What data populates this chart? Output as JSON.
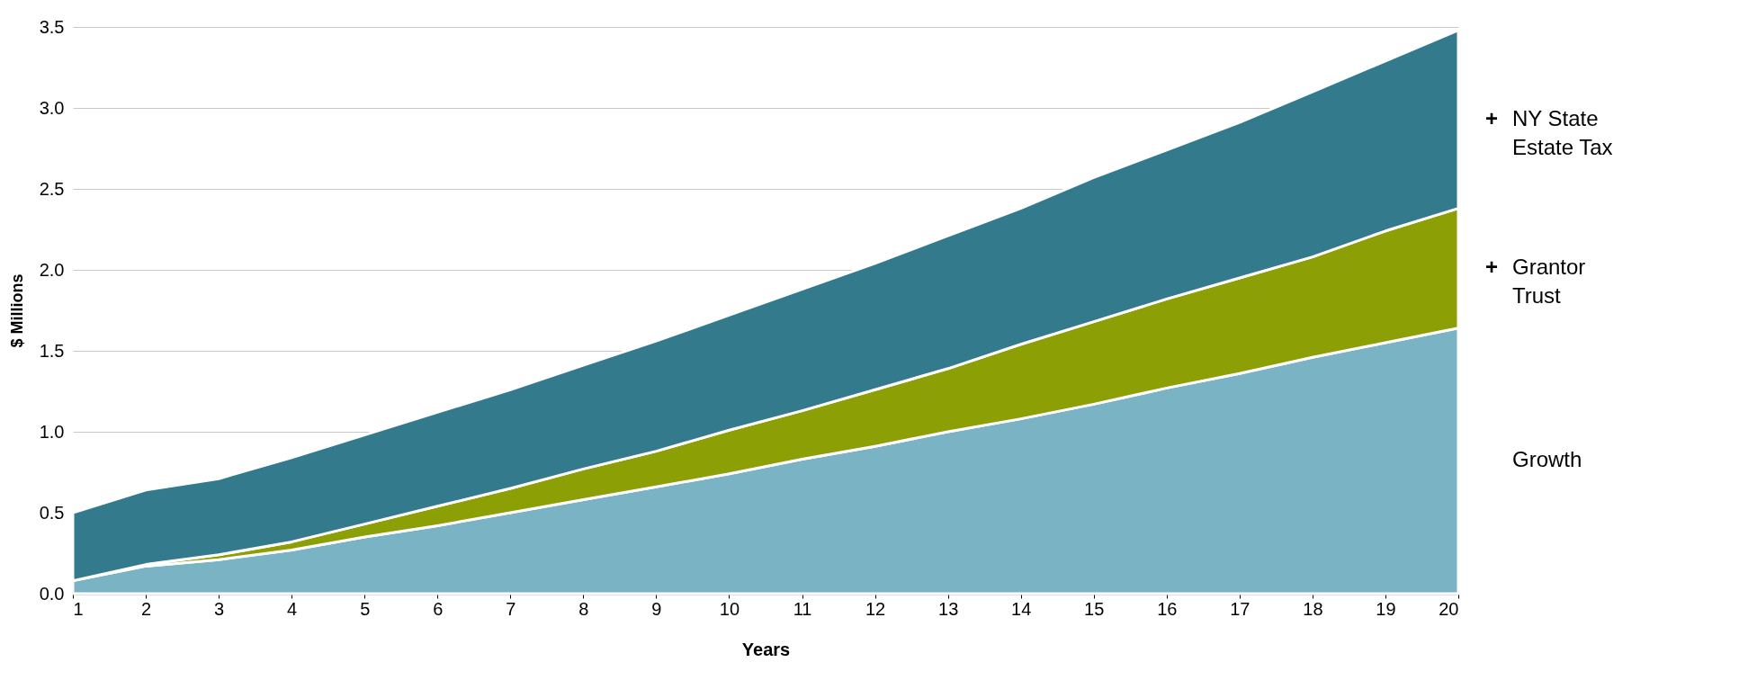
{
  "chart_data": {
    "type": "area",
    "stacked": true,
    "xlabel": "Years",
    "ylabel": "$ Millions",
    "x": [
      1,
      2,
      3,
      4,
      5,
      6,
      7,
      8,
      9,
      10,
      11,
      12,
      13,
      14,
      15,
      16,
      17,
      18,
      19,
      20
    ],
    "xlim": [
      1,
      20
    ],
    "xticks": [
      1,
      2,
      3,
      4,
      5,
      6,
      7,
      8,
      9,
      10,
      11,
      12,
      13,
      14,
      15,
      16,
      17,
      18,
      19,
      20
    ],
    "ylim": [
      0,
      3.5
    ],
    "yticks": [
      {
        "value": 0,
        "label": "0.0"
      },
      {
        "value": 0.5,
        "label": "0.5"
      },
      {
        "value": 1,
        "label": "1.0"
      },
      {
        "value": 1.5,
        "label": "1.5"
      },
      {
        "value": 2,
        "label": "2.0"
      },
      {
        "value": 2.5,
        "label": "2.5"
      },
      {
        "value": 3,
        "label": "3.0"
      },
      {
        "value": 3.5,
        "label": "3.5"
      }
    ],
    "grid": "y",
    "legend": "right",
    "series": [
      {
        "name": "Growth",
        "color": "#7ab3c3",
        "values": [
          0.08,
          0.17,
          0.21,
          0.27,
          0.35,
          0.42,
          0.5,
          0.58,
          0.66,
          0.74,
          0.83,
          0.91,
          1.0,
          1.08,
          1.17,
          1.27,
          1.36,
          1.46,
          1.55,
          1.64
        ]
      },
      {
        "name": "+ Grantor Trust",
        "color": "#8c9f05",
        "values": [
          0,
          0.01,
          0.03,
          0.05,
          0.08,
          0.12,
          0.15,
          0.19,
          0.22,
          0.27,
          0.3,
          0.35,
          0.39,
          0.46,
          0.51,
          0.55,
          0.59,
          0.62,
          0.69,
          0.74
        ]
      },
      {
        "name": "+ NY State Estate Tax",
        "color": "#337a8c",
        "values": [
          0.42,
          0.46,
          0.47,
          0.52,
          0.55,
          0.58,
          0.61,
          0.64,
          0.68,
          0.71,
          0.75,
          0.78,
          0.82,
          0.84,
          0.89,
          0.92,
          0.96,
          1.02,
          1.05,
          1.1
        ]
      }
    ]
  }
}
